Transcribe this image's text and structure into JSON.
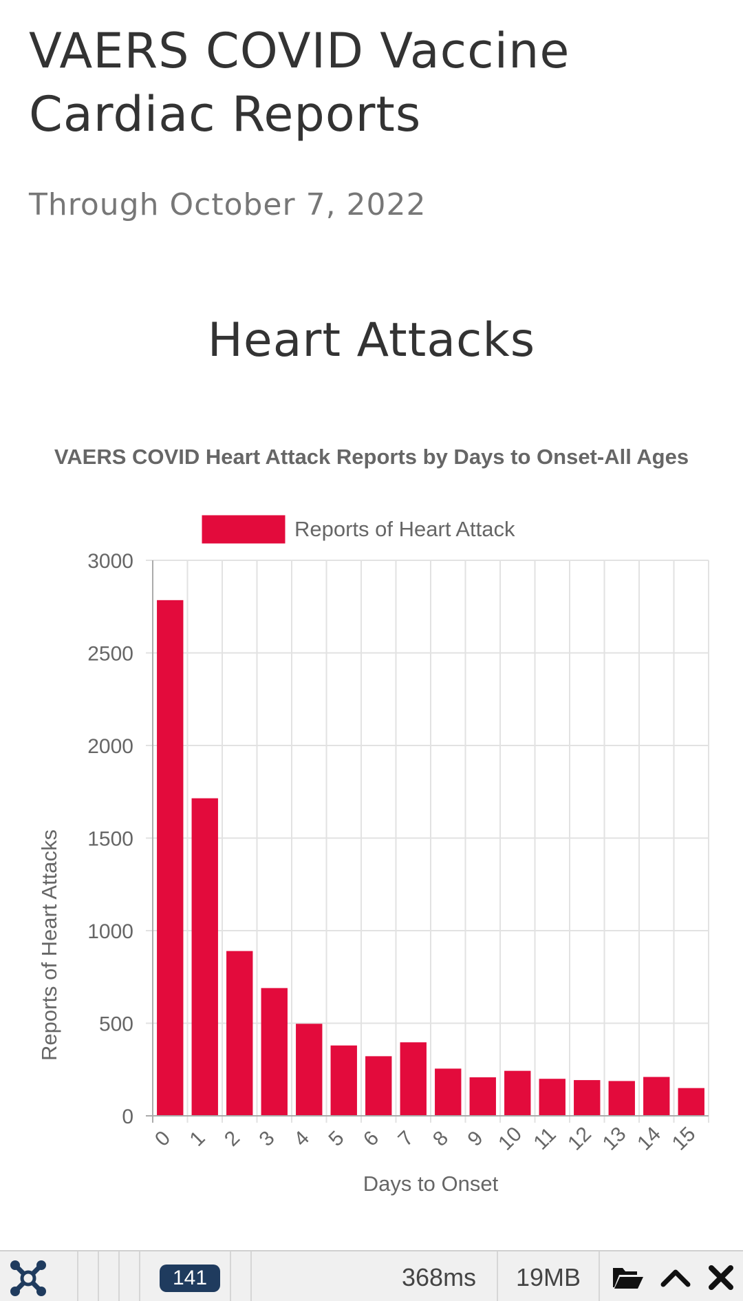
{
  "page": {
    "title": "VAERS COVID Vaccine Cardiac Reports",
    "subtitle": "Through October 7, 2022",
    "section_heading": "Heart Attacks"
  },
  "chart_data": {
    "type": "bar",
    "title": "VAERS COVID Heart Attack Reports by Days to Onset-All Ages",
    "xlabel": "Days to Onset",
    "ylabel": "Reports of Heart Attacks",
    "categories": [
      "0",
      "1",
      "2",
      "3",
      "4",
      "5",
      "6",
      "7",
      "8",
      "9",
      "10",
      "11",
      "12",
      "13",
      "14",
      "15"
    ],
    "series": [
      {
        "name": "Reports of Heart Attack",
        "values": [
          2785,
          1715,
          890,
          690,
          497,
          380,
          322,
          397,
          255,
          208,
          243,
          200,
          193,
          188,
          210,
          150
        ],
        "color": "#e30b3c"
      }
    ],
    "ylim": [
      0,
      3000
    ],
    "yticks": [
      "0",
      "500",
      "1000",
      "1500",
      "2000",
      "2500",
      "3000"
    ],
    "grid": true,
    "legend": "top",
    "x_tick_rotation": "diagonal"
  },
  "toolbar": {
    "logo_icon": "joomla-logo-icon",
    "badge_count": "141",
    "time": "368ms",
    "memory": "19MB",
    "icons": [
      "folder-open-icon",
      "chevron-up-icon",
      "close-icon"
    ]
  }
}
